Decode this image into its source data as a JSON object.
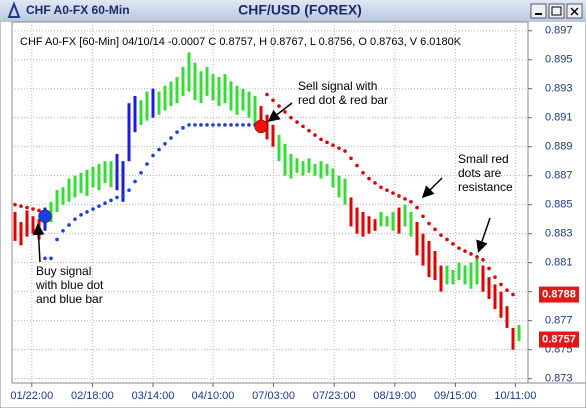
{
  "window": {
    "title": "CHF A0-FX 60-Min"
  },
  "chart_data": {
    "type": "ohlc",
    "title": "CHF/USD (FOREX)",
    "subtitle": "CHF A0-FX [60-Min] 04/10/14  -0.0007 C 0.8757, H 0.8767, L 0.8756, O 0.8763, V 6.0180K",
    "xlim": [
      -0.5,
      85.5
    ],
    "xticks": [
      {
        "value": 2.8,
        "label": "01/22:00"
      },
      {
        "value": 12.9,
        "label": "02/18:00"
      },
      {
        "value": 23,
        "label": "03/14:00"
      },
      {
        "value": 33,
        "label": "04/10:00"
      },
      {
        "value": 43.1,
        "label": "07/03:00"
      },
      {
        "value": 53.2,
        "label": "07/23:00"
      },
      {
        "value": 63.3,
        "label": "08/19:00"
      },
      {
        "value": 73.4,
        "label": "09/15:00"
      },
      {
        "value": 83.4,
        "label": "10/11:00"
      }
    ],
    "ylim": [
      0.8727,
      0.8976
    ],
    "yticks": [
      0.873,
      0.875,
      0.877,
      0.879,
      0.881,
      0.883,
      0.885,
      0.887,
      0.889,
      0.891,
      0.893,
      0.895,
      0.897
    ],
    "grid": true,
    "series": [
      {
        "color": "#e00000",
        "x": [
          0,
          1,
          2,
          3,
          4,
          41,
          42,
          43,
          56,
          57,
          58,
          59,
          60,
          64,
          67,
          68,
          69,
          70,
          71,
          78,
          79,
          80,
          81,
          82,
          83
        ],
        "low": [
          0.8825,
          0.8822,
          0.8828,
          0.883,
          0.8826,
          0.89,
          0.8895,
          0.889,
          0.8835,
          0.883,
          0.8828,
          0.883,
          0.8832,
          0.883,
          0.8815,
          0.8808,
          0.88,
          0.8798,
          0.879,
          0.879,
          0.8785,
          0.8778,
          0.8772,
          0.8765,
          0.875
        ],
        "high": [
          0.8845,
          0.8838,
          0.8846,
          0.8842,
          0.884,
          0.8918,
          0.8912,
          0.8905,
          0.8855,
          0.8848,
          0.8845,
          0.8842,
          0.884,
          0.8848,
          0.8838,
          0.883,
          0.8825,
          0.8818,
          0.8808,
          0.8808,
          0.88,
          0.8795,
          0.879,
          0.878,
          0.8765
        ]
      },
      {
        "color": "#1c1ce0",
        "x": [
          5,
          17,
          18,
          19,
          20,
          23
        ],
        "low": [
          0.8832,
          0.886,
          0.8852,
          0.888,
          0.89,
          0.891
        ],
        "high": [
          0.8848,
          0.8885,
          0.888,
          0.892,
          0.8925,
          0.893
        ]
      },
      {
        "color": "#33dd33",
        "x": [
          6,
          7,
          8,
          9,
          10,
          11,
          12,
          13,
          14,
          15,
          16,
          21,
          22,
          24,
          25,
          26,
          27,
          28,
          29,
          30,
          31,
          32,
          33,
          34,
          35,
          36,
          37,
          38,
          39,
          40,
          44,
          45,
          46,
          47,
          48,
          49,
          50,
          51,
          52,
          53,
          54,
          55,
          61,
          62,
          63,
          65,
          66,
          72,
          73,
          74,
          75,
          76,
          77,
          84
        ],
        "low": [
          0.8838,
          0.8845,
          0.885,
          0.8852,
          0.8855,
          0.8858,
          0.8856,
          0.8862,
          0.886,
          0.8865,
          0.8862,
          0.8905,
          0.8908,
          0.8912,
          0.8915,
          0.8918,
          0.892,
          0.8925,
          0.8928,
          0.8922,
          0.892,
          0.8925,
          0.8922,
          0.8918,
          0.892,
          0.8915,
          0.8912,
          0.8915,
          0.891,
          0.8905,
          0.888,
          0.887,
          0.8868,
          0.8872,
          0.887,
          0.8872,
          0.887,
          0.8868,
          0.887,
          0.8862,
          0.8855,
          0.885,
          0.8835,
          0.8835,
          0.8832,
          0.8835,
          0.8828,
          0.8795,
          0.8795,
          0.8798,
          0.8795,
          0.8792,
          0.8795,
          0.8756
        ],
        "high": [
          0.8852,
          0.886,
          0.8862,
          0.8868,
          0.887,
          0.8872,
          0.8874,
          0.8876,
          0.8878,
          0.888,
          0.888,
          0.8922,
          0.8928,
          0.8928,
          0.8932,
          0.8935,
          0.8938,
          0.8945,
          0.8955,
          0.8948,
          0.8942,
          0.8945,
          0.894,
          0.8938,
          0.894,
          0.8935,
          0.8932,
          0.893,
          0.8928,
          0.8925,
          0.8898,
          0.8892,
          0.8885,
          0.8882,
          0.888,
          0.8882,
          0.8878,
          0.888,
          0.8878,
          0.8875,
          0.887,
          0.8868,
          0.8845,
          0.8842,
          0.8845,
          0.885,
          0.8845,
          0.8808,
          0.8805,
          0.881,
          0.8808,
          0.881,
          0.8815,
          0.8767
        ]
      }
    ],
    "dots": [
      {
        "color": "#1a3fe6",
        "x": [
          5,
          6,
          7,
          8,
          9,
          10,
          11,
          12,
          13,
          14,
          15,
          16,
          17,
          18,
          19,
          20,
          21,
          22,
          23,
          24,
          25,
          26,
          27,
          28,
          29,
          30,
          31,
          32,
          33,
          34,
          35,
          36,
          37,
          38,
          39,
          40
        ],
        "values": [
          0.8813,
          0.8813,
          0.8826,
          0.8832,
          0.8836,
          0.884,
          0.8843,
          0.8845,
          0.8847,
          0.8849,
          0.8851,
          0.8853,
          0.8855,
          0.8856,
          0.886,
          0.8866,
          0.8872,
          0.8878,
          0.8884,
          0.8888,
          0.8892,
          0.8896,
          0.89,
          0.8903,
          0.8905,
          0.8905,
          0.8905,
          0.8905,
          0.8905,
          0.8905,
          0.8905,
          0.8905,
          0.8905,
          0.8905,
          0.8905,
          0.8905
        ]
      },
      {
        "color": "#e00000",
        "x": [
          0,
          1,
          2,
          3,
          4,
          42,
          43,
          44,
          45,
          46,
          47,
          48,
          49,
          50,
          51,
          52,
          53,
          54,
          55,
          56,
          57,
          58,
          59,
          60,
          61,
          62,
          63,
          64,
          65,
          66,
          67,
          68,
          69,
          70,
          71,
          72,
          73,
          74,
          75,
          76,
          77,
          78,
          79,
          80,
          81,
          82,
          83
        ],
        "values": [
          0.885,
          0.8849,
          0.8848,
          0.8847,
          0.8846,
          0.8926,
          0.8922,
          0.8918,
          0.8914,
          0.891,
          0.8907,
          0.8904,
          0.8901,
          0.8898,
          0.8895,
          0.8893,
          0.8891,
          0.8889,
          0.8887,
          0.8882,
          0.8877,
          0.8872,
          0.8868,
          0.8865,
          0.8862,
          0.886,
          0.8858,
          0.8856,
          0.8854,
          0.8852,
          0.8848,
          0.8842,
          0.8837,
          0.8833,
          0.8829,
          0.8826,
          0.8823,
          0.882,
          0.8818,
          0.8816,
          0.8814,
          0.8812,
          0.8806,
          0.88,
          0.8795,
          0.8791,
          0.8788
        ]
      }
    ],
    "signals": [
      {
        "x": 5,
        "value": 0.8842,
        "color": "#1a3fe6"
      },
      {
        "x": 41,
        "value": 0.8904,
        "color": "#f01010"
      }
    ],
    "price_markers": [
      0.8788,
      0.8757
    ],
    "marker_color": "#e01818",
    "annotations": [
      [
        "Buy signal",
        "with blue dot",
        "and blue bar"
      ],
      [
        "Sell signal with",
        "red dot & red bar"
      ],
      [
        "Small red",
        "dots are",
        "resistance"
      ]
    ]
  }
}
